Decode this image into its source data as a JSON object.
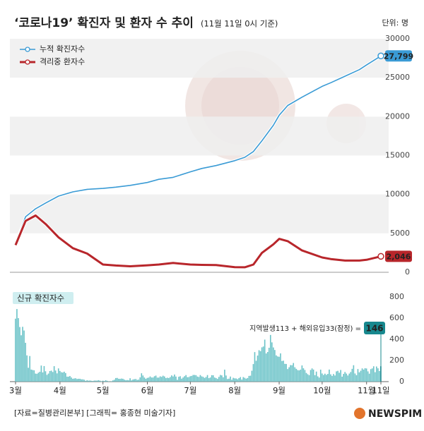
{
  "header": {
    "title": "‘코로나19’ 확진자 및 환자 수 추이",
    "subtitle": "(11월 11일 0시 기준)",
    "unit": "단위: 명"
  },
  "chart_data": [
    {
      "type": "line",
      "x": [
        0,
        7,
        14,
        21,
        30,
        40,
        50,
        61,
        70,
        80,
        92,
        100,
        110,
        122,
        130,
        140,
        153,
        160,
        166,
        172,
        180,
        184,
        190,
        200,
        214,
        220,
        230,
        240,
        245,
        255
      ],
      "series": [
        {
          "name": "누적 확진자수",
          "color": "#3a9bd5",
          "values": [
            3736,
            7134,
            8162,
            8897,
            9786,
            10331,
            10661,
            10780,
            10936,
            11165,
            11541,
            11947,
            12198,
            12904,
            13338,
            13711,
            14336,
            14770,
            15515,
            16900,
            18900,
            20182,
            21431,
            22504,
            23889,
            24353,
            25199,
            26043,
            26635,
            27799
          ],
          "value_labels": [
            null,
            null,
            null,
            null,
            null,
            null,
            null,
            null,
            null,
            null,
            null,
            null,
            null,
            null,
            null,
            null,
            null,
            null,
            null,
            null,
            null,
            null,
            null,
            null,
            null,
            null,
            null,
            null,
            null,
            "27,799"
          ]
        },
        {
          "name": "격리중 환자수",
          "color": "#b8262b",
          "values": [
            3500,
            6600,
            7300,
            6200,
            4500,
            3100,
            2400,
            1000,
            870,
            770,
            900,
            1000,
            1200,
            1000,
            950,
            930,
            650,
            640,
            1000,
            2500,
            3600,
            4300,
            4000,
            2800,
            1900,
            1700,
            1500,
            1500,
            1600,
            2046
          ],
          "value_labels": [
            null,
            null,
            null,
            null,
            null,
            null,
            null,
            null,
            null,
            null,
            null,
            null,
            null,
            null,
            null,
            null,
            null,
            null,
            null,
            null,
            null,
            null,
            null,
            null,
            null,
            null,
            null,
            null,
            null,
            "2,046"
          ]
        }
      ],
      "xlim": [
        0,
        255
      ],
      "ylim": [
        0,
        30000
      ],
      "yticks": [
        0,
        5000,
        10000,
        15000,
        20000,
        25000,
        30000
      ],
      "bands": true
    },
    {
      "type": "bar",
      "title": "신규 확진자수",
      "color": "#6cc3c8",
      "highlight_color": "#17888e",
      "annotation": "지역발생113 + 해외유입33(잠정) =",
      "values": [
        595,
        686,
        600,
        516,
        438,
        518,
        483,
        367,
        248,
        131,
        242,
        114,
        110,
        107,
        76,
        74,
        84,
        93,
        152,
        87,
        147,
        98,
        64,
        76,
        100,
        104,
        91,
        146,
        105,
        78,
        125,
        101,
        89,
        86,
        94,
        81,
        47,
        47,
        53,
        39,
        27,
        30,
        32,
        25,
        27,
        27,
        22,
        22,
        18,
        8,
        13,
        9,
        11,
        8,
        6,
        10,
        10,
        10,
        14,
        9,
        4,
        9,
        6,
        13,
        8,
        3,
        2,
        4,
        12,
        18,
        34,
        35,
        27,
        26,
        29,
        27,
        19,
        13,
        15,
        13,
        32,
        12,
        20,
        23,
        25,
        16,
        19,
        40,
        79,
        58,
        39,
        27,
        35,
        38,
        49,
        39,
        39,
        51,
        57,
        38,
        38,
        50,
        45,
        56,
        49,
        34,
        37,
        34,
        43,
        59,
        49,
        67,
        48,
        17,
        46,
        51,
        28,
        39,
        51,
        62,
        42,
        43,
        51,
        54,
        63,
        63,
        61,
        48,
        44,
        62,
        50,
        45,
        35,
        44,
        62,
        33,
        39,
        61,
        60,
        39,
        34,
        26,
        45,
        63,
        59,
        41,
        113,
        58,
        25,
        28,
        48,
        18,
        36,
        31,
        30,
        23,
        33,
        43,
        20,
        43,
        36,
        28,
        34,
        54,
        56,
        103,
        166,
        279,
        197,
        246,
        297,
        288,
        324,
        332,
        397,
        266,
        280,
        320,
        441,
        371,
        323,
        299,
        248,
        238,
        235,
        267,
        195,
        198,
        168,
        167,
        119,
        136,
        156,
        155,
        176,
        136,
        121,
        109,
        106,
        113,
        153,
        126,
        110,
        82,
        70,
        61,
        110,
        125,
        114,
        61,
        95,
        50,
        38,
        113,
        77,
        63,
        75,
        64,
        73,
        114,
        69,
        54,
        72,
        58,
        97,
        102,
        84,
        110,
        47,
        73,
        91,
        76,
        58,
        76,
        91,
        121,
        155,
        77,
        61,
        119,
        88,
        103,
        125,
        114,
        127,
        124,
        97,
        75,
        118,
        125,
        145,
        89,
        143,
        126,
        100,
        146
      ],
      "xlim": [
        0,
        255
      ],
      "xticks": [
        {
          "value": 0,
          "label": "3월"
        },
        {
          "value": 31,
          "label": "4월"
        },
        {
          "value": 61,
          "label": "5월"
        },
        {
          "value": 92,
          "label": "6월"
        },
        {
          "value": 122,
          "label": "7월"
        },
        {
          "value": 153,
          "label": "8월"
        },
        {
          "value": 184,
          "label": "9월"
        },
        {
          "value": 214,
          "label": "10월"
        },
        {
          "value": 245,
          "label": "11월"
        },
        {
          "value": 255,
          "label": "11일"
        }
      ],
      "ylim": [
        0,
        800
      ],
      "yticks": [
        0,
        200,
        400,
        600,
        800
      ]
    }
  ],
  "footer": {
    "source": "[자료=질병관리본부] [그래픽= 홍종현 미술기자]",
    "logo": "NEWSPIM"
  }
}
